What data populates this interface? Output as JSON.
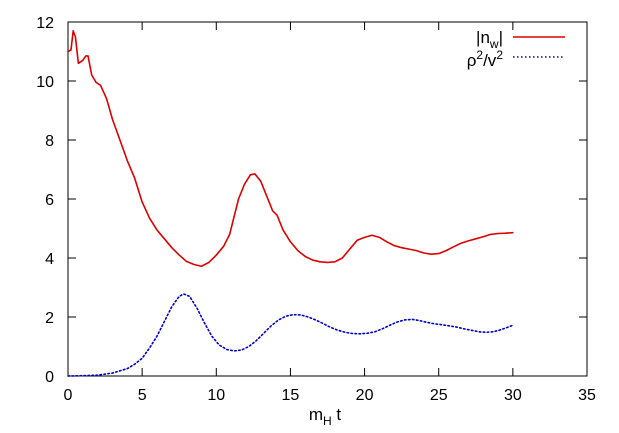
{
  "chart_data": {
    "type": "line",
    "title": "",
    "xlabel": "m_H t",
    "ylabel": "",
    "xlim": [
      0,
      35
    ],
    "ylim": [
      0,
      12
    ],
    "x_ticks": [
      0,
      5,
      10,
      15,
      20,
      25,
      30,
      35
    ],
    "y_ticks": [
      0,
      2,
      4,
      6,
      8,
      10,
      12
    ],
    "grid": false,
    "legend_position": "top-right",
    "series": [
      {
        "name": "|n_w|",
        "color": "#dd0000",
        "style": "solid",
        "points": [
          [
            0.0,
            11.0
          ],
          [
            0.2,
            11.05
          ],
          [
            0.35,
            11.7
          ],
          [
            0.5,
            11.5
          ],
          [
            0.7,
            10.6
          ],
          [
            1.0,
            10.7
          ],
          [
            1.2,
            10.85
          ],
          [
            1.35,
            10.85
          ],
          [
            1.6,
            10.2
          ],
          [
            1.9,
            9.95
          ],
          [
            2.2,
            9.85
          ],
          [
            2.6,
            9.4
          ],
          [
            3.0,
            8.7
          ],
          [
            3.5,
            8.0
          ],
          [
            4.0,
            7.3
          ],
          [
            4.5,
            6.7
          ],
          [
            5.0,
            5.9
          ],
          [
            5.5,
            5.35
          ],
          [
            6.0,
            4.95
          ],
          [
            6.5,
            4.65
          ],
          [
            7.0,
            4.35
          ],
          [
            7.5,
            4.1
          ],
          [
            8.0,
            3.88
          ],
          [
            8.5,
            3.78
          ],
          [
            9.0,
            3.72
          ],
          [
            9.5,
            3.85
          ],
          [
            10.0,
            4.1
          ],
          [
            10.5,
            4.4
          ],
          [
            10.9,
            4.8
          ],
          [
            11.2,
            5.4
          ],
          [
            11.5,
            6.0
          ],
          [
            11.9,
            6.5
          ],
          [
            12.3,
            6.82
          ],
          [
            12.6,
            6.85
          ],
          [
            13.0,
            6.6
          ],
          [
            13.4,
            6.1
          ],
          [
            13.8,
            5.6
          ],
          [
            14.1,
            5.45
          ],
          [
            14.5,
            4.95
          ],
          [
            15.0,
            4.55
          ],
          [
            15.5,
            4.25
          ],
          [
            16.0,
            4.05
          ],
          [
            16.5,
            3.93
          ],
          [
            17.0,
            3.87
          ],
          [
            17.5,
            3.85
          ],
          [
            18.0,
            3.87
          ],
          [
            18.5,
            4.0
          ],
          [
            19.0,
            4.3
          ],
          [
            19.5,
            4.6
          ],
          [
            20.0,
            4.7
          ],
          [
            20.5,
            4.77
          ],
          [
            21.0,
            4.7
          ],
          [
            21.5,
            4.55
          ],
          [
            22.0,
            4.42
          ],
          [
            22.5,
            4.35
          ],
          [
            23.0,
            4.3
          ],
          [
            23.5,
            4.25
          ],
          [
            24.0,
            4.17
          ],
          [
            24.5,
            4.13
          ],
          [
            25.0,
            4.15
          ],
          [
            25.5,
            4.25
          ],
          [
            26.0,
            4.38
          ],
          [
            26.5,
            4.5
          ],
          [
            27.0,
            4.58
          ],
          [
            27.5,
            4.65
          ],
          [
            28.0,
            4.72
          ],
          [
            28.5,
            4.8
          ],
          [
            29.0,
            4.83
          ],
          [
            29.5,
            4.84
          ],
          [
            30.0,
            4.86
          ]
        ]
      },
      {
        "name": "ρ²/v²",
        "color": "#0000cc",
        "style": "dotted",
        "points": [
          [
            0.0,
            0.0
          ],
          [
            1.0,
            0.01
          ],
          [
            2.0,
            0.03
          ],
          [
            3.0,
            0.1
          ],
          [
            4.0,
            0.25
          ],
          [
            4.5,
            0.4
          ],
          [
            5.0,
            0.6
          ],
          [
            5.5,
            0.95
          ],
          [
            6.0,
            1.35
          ],
          [
            6.5,
            1.85
          ],
          [
            7.0,
            2.35
          ],
          [
            7.5,
            2.7
          ],
          [
            7.8,
            2.78
          ],
          [
            8.2,
            2.7
          ],
          [
            8.7,
            2.3
          ],
          [
            9.2,
            1.8
          ],
          [
            9.7,
            1.35
          ],
          [
            10.2,
            1.05
          ],
          [
            10.7,
            0.9
          ],
          [
            11.2,
            0.85
          ],
          [
            11.7,
            0.88
          ],
          [
            12.2,
            1.0
          ],
          [
            12.7,
            1.2
          ],
          [
            13.2,
            1.45
          ],
          [
            13.7,
            1.7
          ],
          [
            14.2,
            1.9
          ],
          [
            14.7,
            2.03
          ],
          [
            15.2,
            2.08
          ],
          [
            15.7,
            2.07
          ],
          [
            16.2,
            2.0
          ],
          [
            16.7,
            1.9
          ],
          [
            17.2,
            1.78
          ],
          [
            17.7,
            1.65
          ],
          [
            18.2,
            1.55
          ],
          [
            18.7,
            1.48
          ],
          [
            19.2,
            1.44
          ],
          [
            19.7,
            1.43
          ],
          [
            20.2,
            1.45
          ],
          [
            20.7,
            1.5
          ],
          [
            21.2,
            1.6
          ],
          [
            21.7,
            1.72
          ],
          [
            22.2,
            1.83
          ],
          [
            22.7,
            1.9
          ],
          [
            23.2,
            1.92
          ],
          [
            23.7,
            1.88
          ],
          [
            24.2,
            1.82
          ],
          [
            24.7,
            1.77
          ],
          [
            25.2,
            1.74
          ],
          [
            25.7,
            1.7
          ],
          [
            26.2,
            1.66
          ],
          [
            26.7,
            1.6
          ],
          [
            27.2,
            1.55
          ],
          [
            27.7,
            1.5
          ],
          [
            28.2,
            1.48
          ],
          [
            28.7,
            1.5
          ],
          [
            29.2,
            1.57
          ],
          [
            29.7,
            1.66
          ],
          [
            30.0,
            1.72
          ]
        ]
      }
    ]
  }
}
